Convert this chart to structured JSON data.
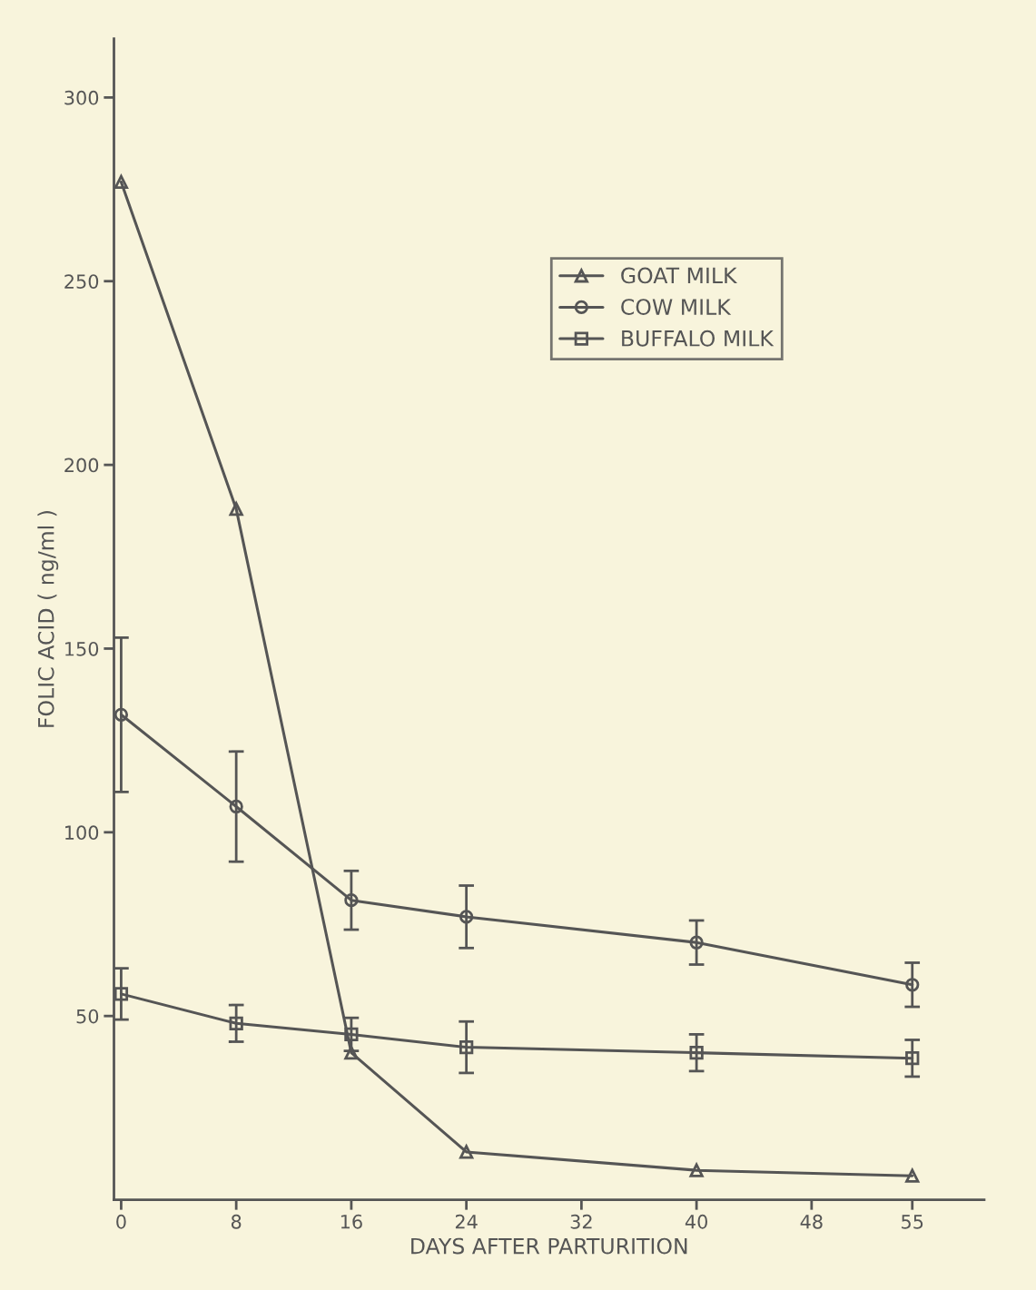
{
  "chart_data": {
    "type": "line",
    "xlabel": "DAYS AFTER PARTURITION",
    "ylabel": "FOLIC ACID ( ng/ml )",
    "xlim": [
      -0.5,
      60
    ],
    "xticks": [
      0,
      8,
      16,
      24,
      32,
      40,
      48,
      55
    ],
    "ylim": [
      0,
      316
    ],
    "yticks": [
      50,
      100,
      150,
      200,
      250,
      300
    ],
    "grid": false,
    "legend": "top right",
    "series": [
      {
        "name": "GOAT MILK",
        "color": "#555555",
        "marker": "triangle",
        "x": [
          0,
          8,
          16,
          24,
          40,
          55
        ],
        "values": [
          277,
          188,
          40,
          13,
          8,
          6.5
        ]
      },
      {
        "name": "COW MILK",
        "color": "#555555",
        "marker": "circle",
        "x": [
          0,
          8,
          16,
          24,
          40,
          55
        ],
        "values": [
          132,
          107,
          81.5,
          77,
          70,
          58.5
        ],
        "errors": [
          21,
          15,
          8,
          8.5,
          6,
          6
        ]
      },
      {
        "name": "BUFFALO MILK",
        "color": "#555555",
        "marker": "square",
        "x": [
          0,
          8,
          16,
          24,
          40,
          55
        ],
        "values": [
          56,
          48,
          45,
          41.5,
          40,
          38.5
        ],
        "errors": [
          7,
          5,
          4.5,
          7,
          5,
          5
        ]
      }
    ]
  }
}
